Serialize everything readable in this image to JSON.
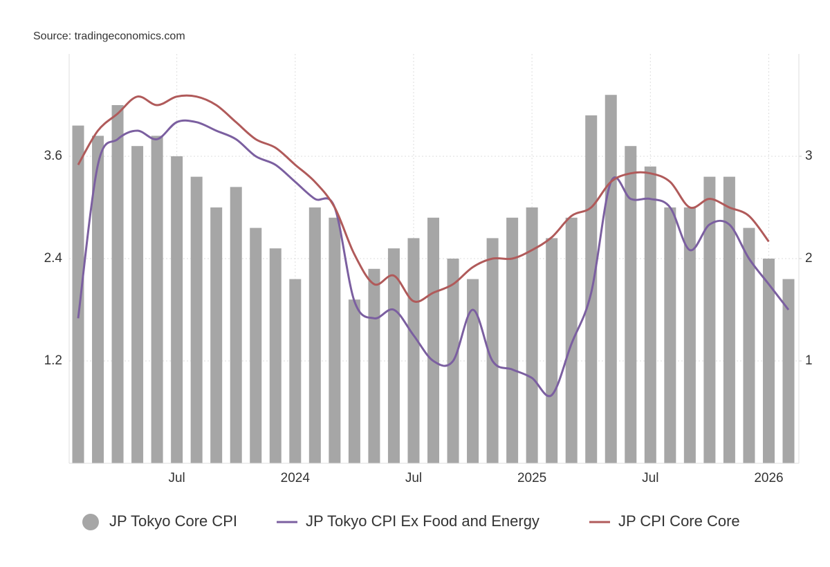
{
  "chart_data": {
    "type": "combo",
    "source": "Source: tradingeconomics.com",
    "x": [
      "2023-02",
      "2023-03",
      "2023-04",
      "2023-05",
      "2023-06",
      "2023-07",
      "2023-08",
      "2023-09",
      "2023-10",
      "2023-11",
      "2023-12",
      "2024-01",
      "2024-02",
      "2024-03",
      "2024-04",
      "2024-05",
      "2024-06",
      "2024-07",
      "2024-08",
      "2024-09",
      "2024-10",
      "2024-11",
      "2024-12",
      "2025-01",
      "2025-02",
      "2025-03",
      "2025-04",
      "2025-05",
      "2025-06",
      "2025-07",
      "2025-08",
      "2025-09",
      "2025-10",
      "2025-11",
      "2025-12",
      "2026-01",
      "2026-02"
    ],
    "xticks": [
      {
        "value": "2023-07",
        "label": "Jul"
      },
      {
        "value": "2024-01",
        "label": "2024"
      },
      {
        "value": "2024-07",
        "label": "Jul"
      },
      {
        "value": "2025-01",
        "label": "2025"
      },
      {
        "value": "2025-07",
        "label": "Jul"
      },
      {
        "value": "2026-01",
        "label": "2026"
      }
    ],
    "ylim": [
      0,
      4.8
    ],
    "yticks": [
      1.2,
      2.4,
      3.6
    ],
    "y2lim": [
      0,
      4
    ],
    "y2ticks": [
      1,
      2,
      3
    ],
    "grid": true,
    "legend": "bottom",
    "series": [
      {
        "name": "JP Tokyo Core CPI",
        "type": "bar",
        "axis": "y2",
        "color": "#a6a6a6",
        "values": [
          3.3,
          3.2,
          3.5,
          3.1,
          3.2,
          3.0,
          2.8,
          2.5,
          2.7,
          2.3,
          2.1,
          1.8,
          2.5,
          2.4,
          1.6,
          1.9,
          2.1,
          2.2,
          2.4,
          2.0,
          1.8,
          2.2,
          2.4,
          2.5,
          2.2,
          2.4,
          3.4,
          3.6,
          3.1,
          2.9,
          2.5,
          2.5,
          2.8,
          2.8,
          2.3,
          2.0,
          1.8
        ]
      },
      {
        "name": "JP Tokyo CPI Ex Food and Energy",
        "type": "line",
        "color": "#7b5fa0",
        "values": [
          1.7,
          3.5,
          3.8,
          3.9,
          3.8,
          4.0,
          4.0,
          3.9,
          3.8,
          3.6,
          3.5,
          3.3,
          3.1,
          3.0,
          1.9,
          1.7,
          1.8,
          1.5,
          1.2,
          1.2,
          1.8,
          1.2,
          1.1,
          1.0,
          0.8,
          1.4,
          2.0,
          3.3,
          3.1,
          3.1,
          3.0,
          2.5,
          2.8,
          2.8,
          2.4,
          2.1,
          1.8
        ]
      },
      {
        "name": "JP CPI Core Core",
        "type": "line",
        "color": "#b05a5a",
        "values": [
          3.5,
          3.9,
          4.1,
          4.3,
          4.2,
          4.3,
          4.3,
          4.2,
          4.0,
          3.8,
          3.7,
          3.5,
          3.3,
          3.0,
          2.45,
          2.1,
          2.2,
          1.9,
          2.0,
          2.1,
          2.3,
          2.4,
          2.4,
          2.5,
          2.65,
          2.9,
          3.0,
          3.3,
          3.4,
          3.4,
          3.3,
          3.0,
          3.1,
          3.0,
          2.9,
          2.6,
          null
        ]
      }
    ]
  }
}
